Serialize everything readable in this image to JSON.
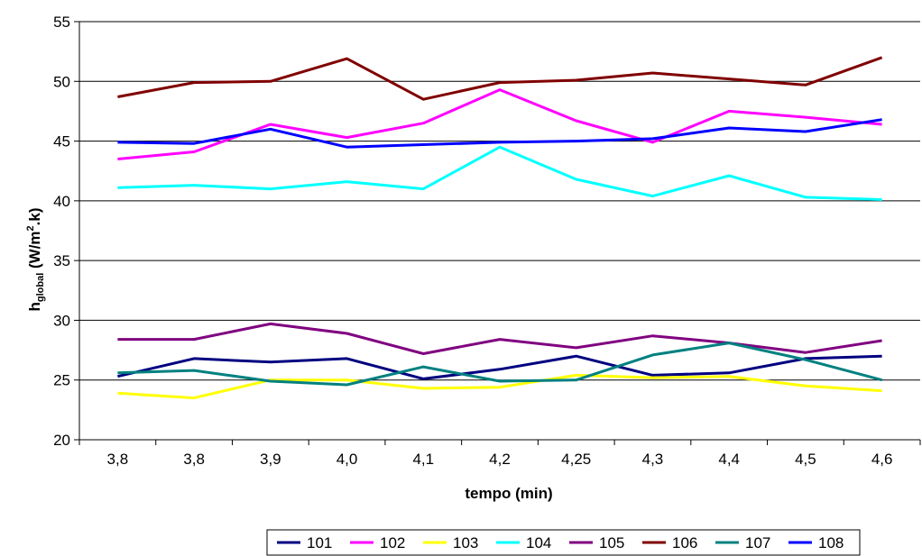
{
  "chart_data": {
    "type": "line",
    "categories": [
      "3,8",
      "3,8",
      "3,9",
      "4,0",
      "4,1",
      "4,2",
      "4,25",
      "4,3",
      "4,4",
      "4,5",
      "4,6"
    ],
    "xlabel": "tempo (min)",
    "ylabel": {
      "main": "h",
      "sub": "global",
      "unit_pre": " (W/m",
      "sup": "2",
      "unit_post": ".k)"
    },
    "ylim": [
      20,
      55
    ],
    "yticks": [
      20,
      25,
      30,
      35,
      40,
      45,
      50,
      55
    ],
    "grid": true,
    "legend_position": "bottom",
    "series": [
      {
        "name": "101",
        "color": "#000080",
        "values": [
          25.3,
          26.8,
          26.5,
          26.8,
          25.1,
          25.9,
          27.0,
          25.4,
          25.6,
          26.8,
          27.0
        ]
      },
      {
        "name": "102",
        "color": "#FF00FF",
        "values": [
          43.5,
          44.1,
          46.4,
          45.3,
          46.5,
          49.3,
          46.7,
          44.9,
          47.5,
          47.0,
          46.4
        ]
      },
      {
        "name": "103",
        "color": "#FFFF00",
        "values": [
          23.9,
          23.5,
          25.0,
          25.0,
          24.3,
          24.4,
          25.4,
          25.2,
          25.3,
          24.5,
          24.1
        ]
      },
      {
        "name": "104",
        "color": "#00FFFF",
        "values": [
          41.1,
          41.3,
          41.0,
          41.6,
          41.0,
          44.5,
          41.8,
          40.4,
          42.1,
          40.3,
          40.1
        ]
      },
      {
        "name": "105",
        "color": "#800080",
        "values": [
          28.4,
          28.4,
          29.7,
          28.9,
          27.2,
          28.4,
          27.7,
          28.7,
          28.1,
          27.3,
          28.3
        ]
      },
      {
        "name": "106",
        "color": "#800000",
        "values": [
          48.7,
          49.9,
          50.0,
          51.9,
          48.5,
          49.9,
          50.1,
          50.7,
          50.2,
          49.7,
          52.0
        ]
      },
      {
        "name": "107",
        "color": "#008080",
        "values": [
          25.6,
          25.8,
          24.9,
          24.6,
          26.1,
          24.9,
          25.0,
          27.1,
          28.1,
          26.7,
          25.0
        ]
      },
      {
        "name": "108",
        "color": "#0000FF",
        "values": [
          44.9,
          44.8,
          46.0,
          44.5,
          44.7,
          44.9,
          45.0,
          45.2,
          46.1,
          45.8,
          46.8
        ]
      }
    ]
  }
}
